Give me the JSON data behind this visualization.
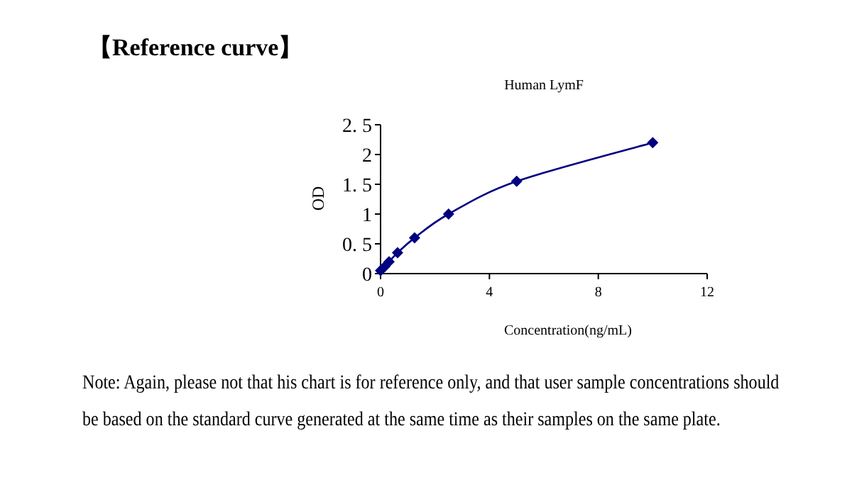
{
  "chart_data": {
    "type": "line",
    "title": "【Reference curve】",
    "subtitle": "Human LymF",
    "xlabel": "Concentration(ng/mL)",
    "ylabel": "OD",
    "x": [
      0,
      0.156,
      0.3125,
      0.625,
      1.25,
      2.5,
      5,
      10
    ],
    "series": [
      {
        "color": "#000080",
        "values": [
          0.05,
          0.12,
          0.2,
          0.35,
          0.6,
          1.0,
          1.55,
          2.2
        ]
      }
    ],
    "xlim": [
      0,
      12
    ],
    "xticks": [
      0,
      4,
      8,
      12
    ],
    "ylim": [
      0,
      2.5
    ],
    "yticks": [
      0,
      {
        "value": 0.5,
        "label": "0. 5"
      },
      1,
      {
        "value": 1.5,
        "label": "1. 5"
      },
      2,
      {
        "value": 2.5,
        "label": "2. 5"
      }
    ],
    "marker": "diamond",
    "line_style": "solid",
    "grid": false,
    "annotations": [
      "Note: Again, please not that his chart is for reference only, and that user sample concentrations should be based on the standard curve generated at the same time as their samples on the same plate."
    ]
  }
}
